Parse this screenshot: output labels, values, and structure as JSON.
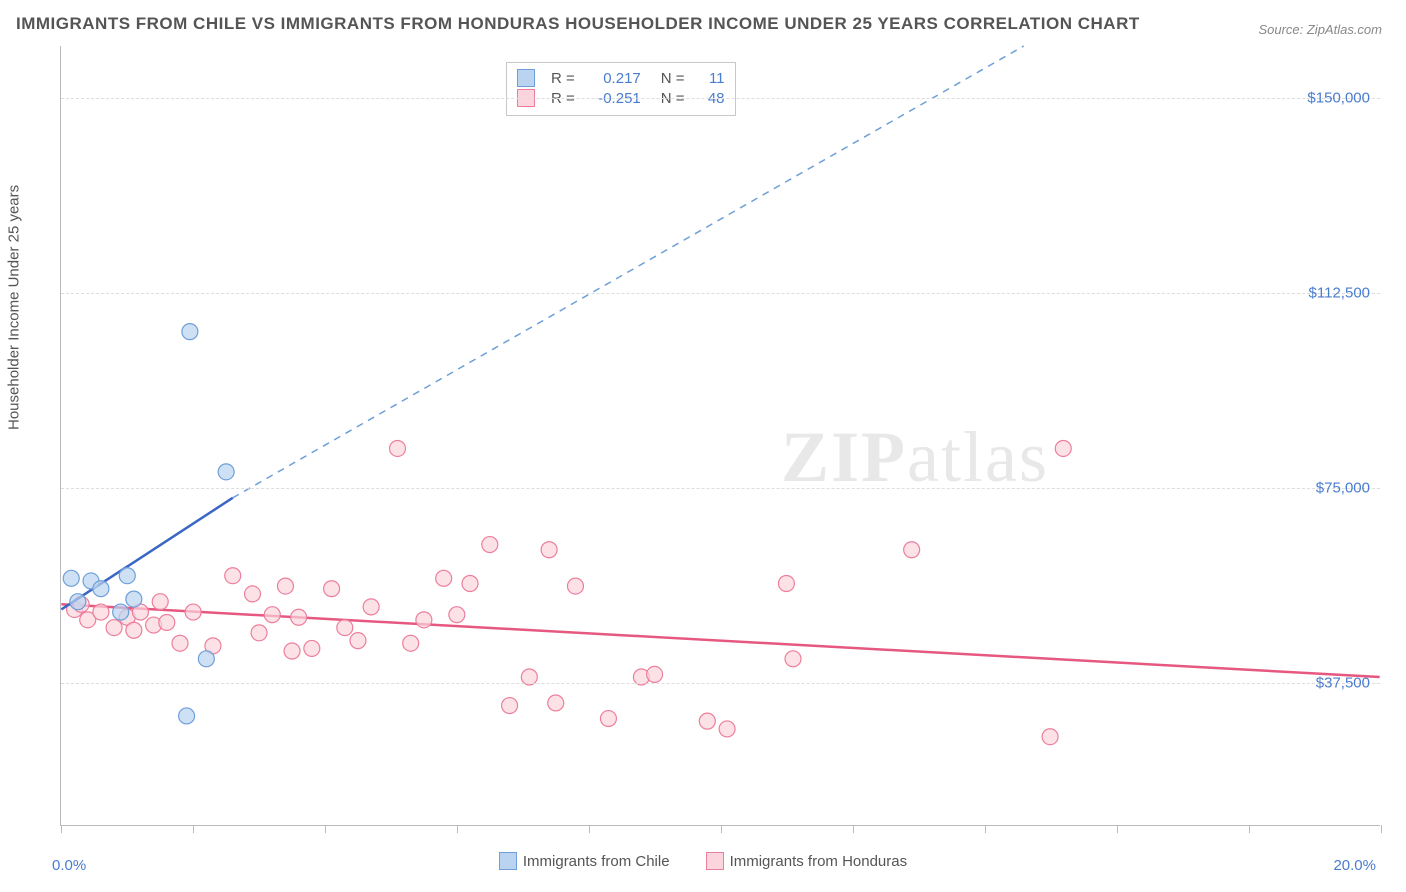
{
  "title": "IMMIGRANTS FROM CHILE VS IMMIGRANTS FROM HONDURAS HOUSEHOLDER INCOME UNDER 25 YEARS CORRELATION CHART",
  "source_label": "Source: ",
  "source_value": "ZipAtlas.com",
  "watermark_zip": "ZIP",
  "watermark_atlas": "atlas",
  "ylabel": "Householder Income Under 25 years",
  "chart": {
    "type": "scatter",
    "background_color": "#ffffff",
    "grid_color": "#dddddd",
    "axis_color": "#bbbbbb",
    "ytick_label_color": "#4a7ccf",
    "xlabel_color": "#4a7ccf",
    "xlim": [
      0.0,
      20.0
    ],
    "ylim": [
      10000,
      160000
    ],
    "yticks": [
      37500,
      75000,
      112500,
      150000
    ],
    "ytick_labels": [
      "$37,500",
      "$75,000",
      "$112,500",
      "$150,000"
    ],
    "xtick_positions": [
      0,
      2,
      4,
      6,
      8,
      10,
      12,
      14,
      16,
      18,
      20
    ],
    "x_left_label": "0.0%",
    "x_right_label": "20.0%",
    "series": [
      {
        "name": "Immigrants from Chile",
        "legend_key": "chile",
        "marker_fill": "#b9d3f0",
        "marker_stroke": "#6f9fd8",
        "marker_radius": 8,
        "line_color": "#3a66c4",
        "dashed_color": "#6f9fd8",
        "R": "0.217",
        "N": "11",
        "trend_solid": {
          "x1": 0.0,
          "y1": 51500,
          "x2": 2.6,
          "y2": 73000
        },
        "trend_dashed": {
          "x1": 2.6,
          "y1": 73000,
          "x2": 14.6,
          "y2": 160000
        },
        "points": [
          {
            "x": 0.15,
            "y": 57500
          },
          {
            "x": 0.25,
            "y": 53000
          },
          {
            "x": 0.45,
            "y": 57000
          },
          {
            "x": 0.6,
            "y": 55500
          },
          {
            "x": 0.9,
            "y": 51000
          },
          {
            "x": 1.0,
            "y": 58000
          },
          {
            "x": 1.1,
            "y": 53500
          },
          {
            "x": 1.95,
            "y": 105000
          },
          {
            "x": 2.5,
            "y": 78000
          },
          {
            "x": 2.2,
            "y": 42000
          },
          {
            "x": 1.9,
            "y": 31000
          }
        ]
      },
      {
        "name": "Immigrants from Honduras",
        "legend_key": "honduras",
        "marker_fill": "#fbd4dd",
        "marker_stroke": "#ec7f9b",
        "marker_radius": 8,
        "line_color": "#e6587f",
        "R": "-0.251",
        "N": "48",
        "trend_solid": {
          "x1": 0.0,
          "y1": 52500,
          "x2": 20.0,
          "y2": 38500
        },
        "points": [
          {
            "x": 0.2,
            "y": 51500
          },
          {
            "x": 0.3,
            "y": 52500
          },
          {
            "x": 0.4,
            "y": 49500
          },
          {
            "x": 0.6,
            "y": 51000
          },
          {
            "x": 0.8,
            "y": 48000
          },
          {
            "x": 1.0,
            "y": 50000
          },
          {
            "x": 1.1,
            "y": 47500
          },
          {
            "x": 1.2,
            "y": 51000
          },
          {
            "x": 1.4,
            "y": 48500
          },
          {
            "x": 1.5,
            "y": 53000
          },
          {
            "x": 1.6,
            "y": 49000
          },
          {
            "x": 1.8,
            "y": 45000
          },
          {
            "x": 2.0,
            "y": 51000
          },
          {
            "x": 2.3,
            "y": 44500
          },
          {
            "x": 2.6,
            "y": 58000
          },
          {
            "x": 2.9,
            "y": 54500
          },
          {
            "x": 3.0,
            "y": 47000
          },
          {
            "x": 3.2,
            "y": 50500
          },
          {
            "x": 3.4,
            "y": 56000
          },
          {
            "x": 3.5,
            "y": 43500
          },
          {
            "x": 3.6,
            "y": 50000
          },
          {
            "x": 3.8,
            "y": 44000
          },
          {
            "x": 4.1,
            "y": 55500
          },
          {
            "x": 4.3,
            "y": 48000
          },
          {
            "x": 4.5,
            "y": 45500
          },
          {
            "x": 4.7,
            "y": 52000
          },
          {
            "x": 5.1,
            "y": 82500
          },
          {
            "x": 5.3,
            "y": 45000
          },
          {
            "x": 5.5,
            "y": 49500
          },
          {
            "x": 5.8,
            "y": 57500
          },
          {
            "x": 6.0,
            "y": 50500
          },
          {
            "x": 6.2,
            "y": 56500
          },
          {
            "x": 6.5,
            "y": 64000
          },
          {
            "x": 6.8,
            "y": 33000
          },
          {
            "x": 7.1,
            "y": 38500
          },
          {
            "x": 7.4,
            "y": 63000
          },
          {
            "x": 7.5,
            "y": 33500
          },
          {
            "x": 7.8,
            "y": 56000
          },
          {
            "x": 8.3,
            "y": 30500
          },
          {
            "x": 8.8,
            "y": 38500
          },
          {
            "x": 9.0,
            "y": 39000
          },
          {
            "x": 9.8,
            "y": 30000
          },
          {
            "x": 10.1,
            "y": 28500
          },
          {
            "x": 11.0,
            "y": 56500
          },
          {
            "x": 11.1,
            "y": 42000
          },
          {
            "x": 12.9,
            "y": 63000
          },
          {
            "x": 15.0,
            "y": 27000
          },
          {
            "x": 15.2,
            "y": 82500
          }
        ]
      }
    ]
  },
  "legend_bottom": [
    {
      "key": "chile",
      "label": "Immigrants from Chile",
      "fill": "#b9d3f0",
      "stroke": "#6f9fd8"
    },
    {
      "key": "honduras",
      "label": "Immigrants from Honduras",
      "fill": "#fbd4dd",
      "stroke": "#ec7f9b"
    }
  ]
}
